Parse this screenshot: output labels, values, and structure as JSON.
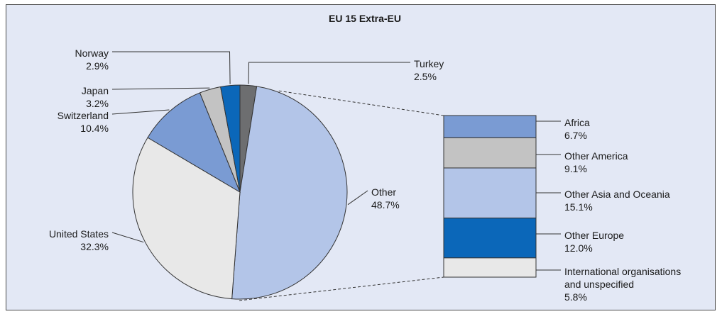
{
  "chart_data": {
    "type": "pie",
    "title": "EU 15 Extra-EU",
    "slices": [
      {
        "label": "Turkey",
        "value": 2.5,
        "value_label": "2.5%",
        "color": "#6d6e70"
      },
      {
        "label": "Other",
        "value": 48.7,
        "value_label": "48.7%",
        "color": "#b3c5e8"
      },
      {
        "label": "United States",
        "value": 32.3,
        "value_label": "32.3%",
        "color": "#e8e8e8"
      },
      {
        "label": "Switzerland",
        "value": 10.4,
        "value_label": "10.4%",
        "color": "#7a9bd3"
      },
      {
        "label": "Japan",
        "value": 3.2,
        "value_label": "3.2%",
        "color": "#c3c3c3"
      },
      {
        "label": "Norway",
        "value": 2.9,
        "value_label": "2.9%",
        "color": "#0b67b9"
      }
    ],
    "breakdown": {
      "of": "Other",
      "items": [
        {
          "label": "Africa",
          "value": 6.7,
          "value_label": "6.7%",
          "color": "#7a9bd3"
        },
        {
          "label": "Other America",
          "value": 9.1,
          "value_label": "9.1%",
          "color": "#c3c3c3"
        },
        {
          "label": "Other Asia and Oceania",
          "value": 15.1,
          "value_label": "15.1%",
          "color": "#b3c5e8"
        },
        {
          "label": "Other Europe",
          "value": 12.0,
          "value_label": "12.0%",
          "color": "#0b67b9"
        },
        {
          "label": "International organisations and unspecified",
          "value": 5.8,
          "value_label": "5.8%",
          "color": "#e8e8e8"
        }
      ]
    }
  }
}
